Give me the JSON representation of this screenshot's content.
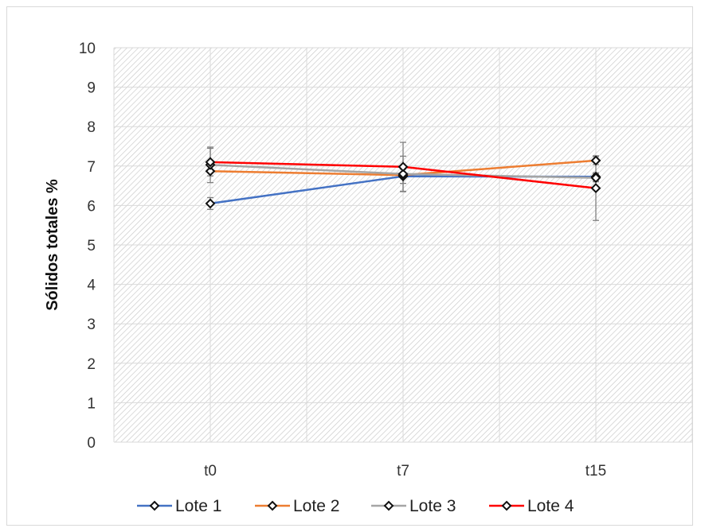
{
  "chart_data": {
    "type": "line",
    "categories": [
      "t0",
      "t7",
      "t15"
    ],
    "ylabel": "Sólidos totales %",
    "xlabel": "",
    "ylim": [
      0,
      10
    ],
    "yticks": [
      0,
      1,
      2,
      3,
      4,
      5,
      6,
      7,
      8,
      9,
      10
    ],
    "grid": true,
    "legend_position": "bottom",
    "series": [
      {
        "name": "Lote 1",
        "color": "#4472c4",
        "values": [
          6.05,
          6.74,
          6.73
        ],
        "errors": [
          0.15,
          0.18,
          0.1
        ]
      },
      {
        "name": "Lote 2",
        "color": "#ed7d31",
        "values": [
          6.87,
          6.77,
          7.14
        ],
        "errors": [
          0.0,
          0.0,
          0.1
        ]
      },
      {
        "name": "Lote 3",
        "color": "#a5a5a5",
        "values": [
          7.03,
          6.8,
          6.7
        ],
        "errors": [
          0.45,
          0.45,
          0.1
        ]
      },
      {
        "name": "Lote 4",
        "color": "#ff0000",
        "values": [
          7.1,
          6.98,
          6.44
        ],
        "errors": [
          0.35,
          0.62,
          0.82
        ]
      }
    ]
  }
}
